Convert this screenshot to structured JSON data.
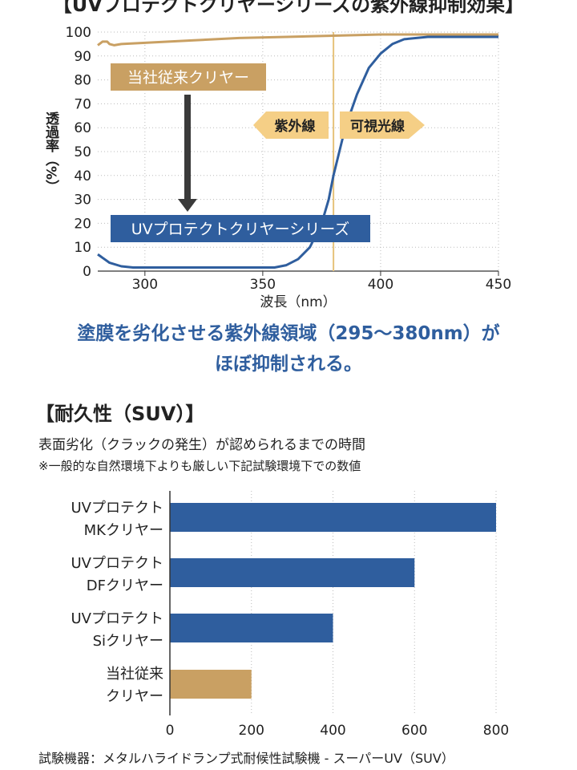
{
  "page": {
    "top_title": "【UVプロテクトクリヤーシリーズの紫外線抑制効果】",
    "caption_line1": "塗膜を劣化させる紫外線領域（295〜380nm）が",
    "caption_line2": "ほぼ抑制される。",
    "section_heading": "【耐久性（SUV）】",
    "section_subtitle": "表面劣化（クラックの発生）が認められるまでの時間",
    "section_note": "※一般的な自然環境下よりも厳しい下記試験環境下での数値",
    "footer": "試験機器：メタルハライドランプ式耐候性試験機 - スーパーUV（SUV）"
  },
  "chart_data": [
    {
      "type": "line",
      "xlabel": "波長（nm）",
      "ylabel": "透過率（%）",
      "xlim": [
        280,
        450
      ],
      "ylim": [
        0,
        100
      ],
      "x_ticks": [
        300,
        350,
        400,
        450
      ],
      "y_ticks": [
        0,
        10,
        20,
        30,
        40,
        50,
        60,
        70,
        80,
        90,
        100
      ],
      "reference_line_x": 380,
      "arrow_labels": {
        "uv": "紫外線",
        "visible": "可視光線"
      },
      "series": [
        {
          "name": "当社従来クリヤー",
          "color": "#c9a063",
          "x": [
            280,
            282,
            284,
            285,
            287,
            290,
            300,
            320,
            340,
            360,
            380,
            400,
            420,
            450
          ],
          "y": [
            94.5,
            96,
            96,
            95,
            94.5,
            95,
            95.5,
            96.5,
            97.5,
            98,
            98.5,
            99,
            99,
            99
          ]
        },
        {
          "name": "UVプロテクトクリヤーシリーズ",
          "color": "#2f5e9e",
          "x": [
            280,
            285,
            290,
            295,
            300,
            320,
            340,
            355,
            360,
            365,
            370,
            375,
            378,
            380,
            385,
            390,
            395,
            400,
            405,
            410,
            420,
            430,
            450
          ],
          "y": [
            7,
            3.5,
            2,
            1.5,
            1.5,
            1.5,
            1.5,
            1.5,
            2.5,
            5,
            10,
            20,
            30,
            40,
            60,
            74,
            85,
            91,
            95,
            97,
            98,
            98,
            98
          ]
        }
      ]
    },
    {
      "type": "bar",
      "orientation": "horizontal",
      "categories": [
        "UVプロテクト\nMKクリヤー",
        "UVプロテクト\nDFクリヤー",
        "UVプロテクト\nSiクリヤー",
        "当社従来\nクリヤー"
      ],
      "values": [
        800,
        600,
        400,
        200
      ],
      "colors": [
        "#2f5e9e",
        "#2f5e9e",
        "#2f5e9e",
        "#c9a063"
      ],
      "xlim": [
        0,
        800
      ],
      "x_ticks": [
        0,
        200,
        400,
        600,
        800
      ]
    }
  ]
}
